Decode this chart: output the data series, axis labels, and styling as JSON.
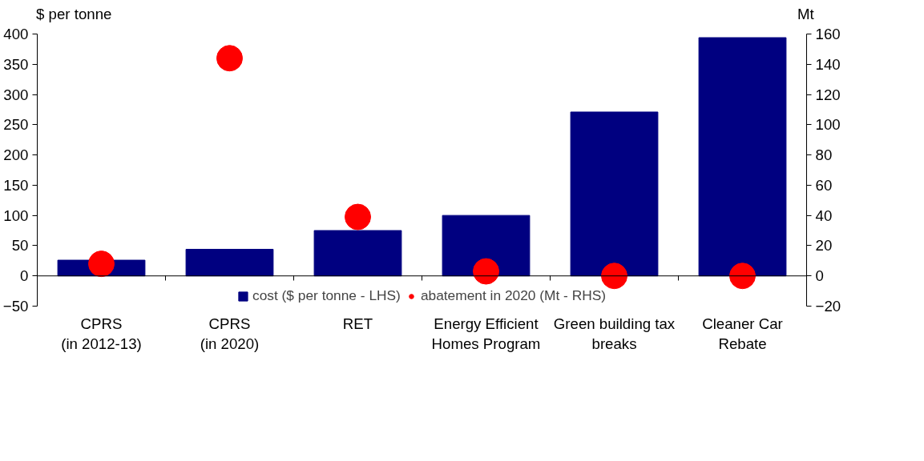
{
  "chart_data": {
    "type": "bar",
    "ylabel": "$ per tonne",
    "y2label": "Mt",
    "categories": [
      "CPRS\n(in 2012-13)",
      "CPRS\n(in 2020)",
      "RET",
      "Energy Efficient\nHomes Program",
      "Green building tax\nbreaks",
      "Cleaner Car\nRebate"
    ],
    "series": [
      {
        "name": "cost ($ per tonne - LHS)",
        "type": "bar",
        "color": "#000080",
        "values": [
          26,
          44,
          75,
          100,
          271,
          394
        ]
      },
      {
        "name": "abatement in 2020 (Mt - RHS)",
        "type": "scatter",
        "color": "#ff0000",
        "axis": "y2",
        "values": [
          8,
          144,
          39,
          3,
          0,
          0
        ]
      }
    ],
    "ylim": [
      -50,
      400
    ],
    "yticks": [
      -50,
      0,
      50,
      100,
      150,
      200,
      250,
      300,
      350,
      400
    ],
    "y2lim": [
      -20,
      160
    ],
    "y2ticks": [
      -20,
      0,
      20,
      40,
      60,
      80,
      100,
      120,
      140,
      160
    ],
    "ref_lines": [
      {
        "axis": "y",
        "value": 0,
        "color": "#000000"
      }
    ],
    "grid": false,
    "legend": "bottom",
    "marker": "circle"
  }
}
